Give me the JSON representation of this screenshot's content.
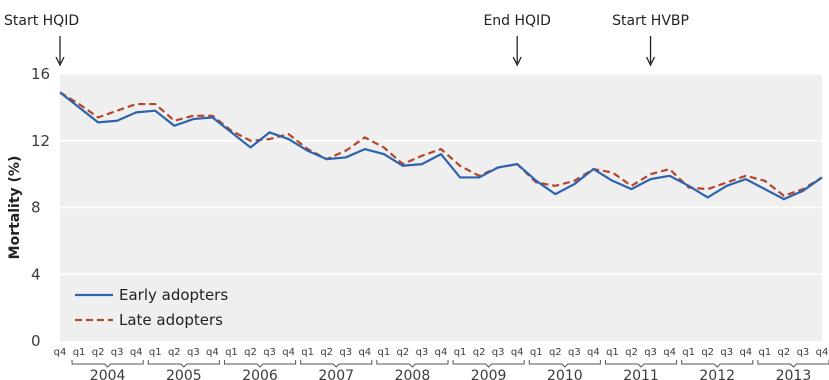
{
  "chart_data": {
    "type": "line",
    "ylabel": "Mortality (%)",
    "xlabel": "",
    "ylim": [
      0,
      16
    ],
    "yticks": [
      0,
      4,
      8,
      12,
      16
    ],
    "grid": true,
    "legend_position": "bottom-left",
    "x": [
      "2003 q4",
      "2004 q1",
      "2004 q2",
      "2004 q3",
      "2004 q4",
      "2005 q1",
      "2005 q2",
      "2005 q3",
      "2005 q4",
      "2006 q1",
      "2006 q2",
      "2006 q3",
      "2006 q4",
      "2007 q1",
      "2007 q2",
      "2007 q3",
      "2007 q4",
      "2008 q1",
      "2008 q2",
      "2008 q3",
      "2008 q4",
      "2009 q1",
      "2009 q2",
      "2009 q3",
      "2009 q4",
      "2010 q1",
      "2010 q2",
      "2010 q3",
      "2010 q4",
      "2011 q1",
      "2011 q2",
      "2011 q3",
      "2011 q4",
      "2012 q1",
      "2012 q2",
      "2012 q3",
      "2012 q4",
      "2013 q1",
      "2013 q2",
      "2013 q3",
      "2013 q4"
    ],
    "quarter_labels": [
      "q4",
      "q1",
      "q2",
      "q3",
      "q4",
      "q1",
      "q2",
      "q3",
      "q4",
      "q1",
      "q2",
      "q3",
      "q4",
      "q1",
      "q2",
      "q3",
      "q4",
      "q1",
      "q2",
      "q3",
      "q4",
      "q1",
      "q2",
      "q3",
      "q4",
      "q1",
      "q2",
      "q3",
      "q4",
      "q1",
      "q2",
      "q3",
      "q4",
      "q1",
      "q2",
      "q3",
      "q4",
      "q1",
      "q2",
      "q3",
      "q4"
    ],
    "years": [
      "2004",
      "2005",
      "2006",
      "2007",
      "2008",
      "2009",
      "2010",
      "2011",
      "2012",
      "2013"
    ],
    "series": [
      {
        "name": "Early adopters",
        "color": "#2e63ad",
        "dash": "solid",
        "values": [
          14.9,
          14.0,
          13.1,
          13.2,
          13.7,
          13.8,
          12.9,
          13.3,
          13.4,
          12.5,
          11.6,
          12.5,
          12.1,
          11.4,
          10.9,
          11.0,
          11.5,
          11.2,
          10.5,
          10.6,
          11.2,
          9.8,
          9.8,
          10.4,
          10.6,
          9.6,
          8.8,
          9.4,
          10.3,
          9.6,
          9.1,
          9.7,
          9.9,
          9.3,
          8.6,
          9.3,
          9.7,
          9.1,
          8.5,
          9.0,
          9.8
        ]
      },
      {
        "name": "Late adopters",
        "color": "#b5452b",
        "dash": "dashed",
        "values": [
          14.9,
          14.2,
          13.4,
          13.8,
          14.2,
          14.2,
          13.2,
          13.5,
          13.5,
          12.6,
          12.0,
          12.1,
          12.4,
          11.5,
          10.9,
          11.4,
          12.2,
          11.6,
          10.6,
          11.1,
          11.5,
          10.5,
          9.9,
          10.4,
          10.6,
          9.5,
          9.3,
          9.6,
          10.3,
          10.1,
          9.3,
          10.0,
          10.3,
          9.2,
          9.1,
          9.5,
          9.9,
          9.6,
          8.7,
          9.1,
          9.8
        ]
      }
    ],
    "annotations": [
      {
        "label": "Start HQID",
        "x_index": 0
      },
      {
        "label": "End HQID",
        "x_index": 24
      },
      {
        "label": "Start HVBP",
        "x_index": 31
      }
    ]
  }
}
